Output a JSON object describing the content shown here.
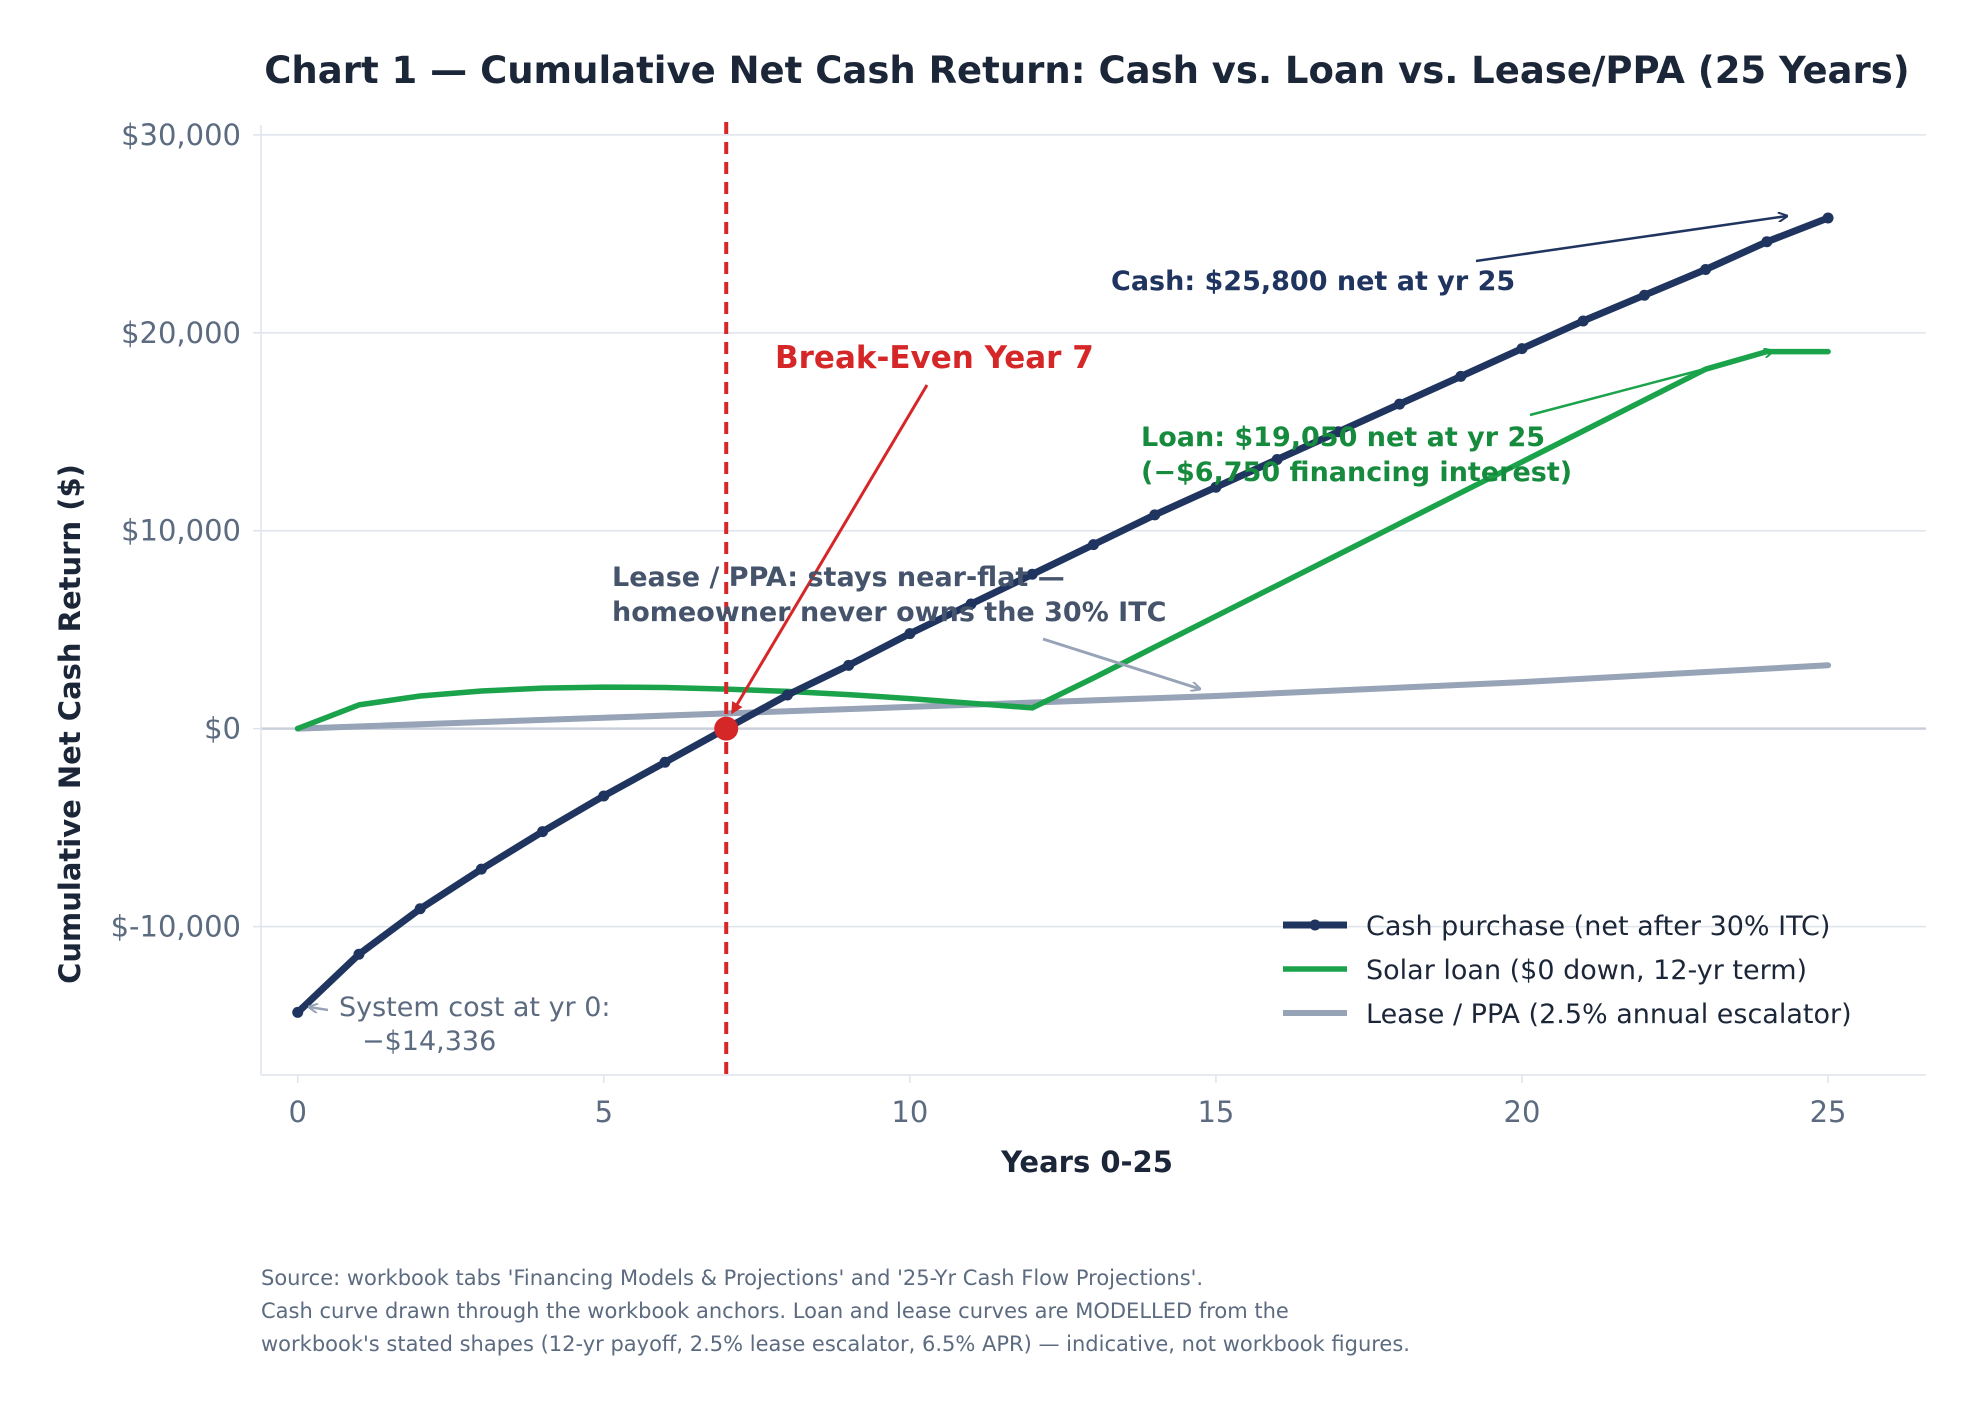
{
  "chart_data": {
    "type": "line",
    "title": "Chart 1 — Cumulative Net Cash Return: Cash vs. Loan vs. Lease/PPA (25 Years)",
    "xlabel": "Years 0-25",
    "ylabel": "Cumulative Net Cash Return ($)",
    "xlim": [
      -0.6,
      26.6
    ],
    "ylim": [
      -17500,
      30500
    ],
    "x_ticks": [
      0,
      5,
      10,
      15,
      20,
      25
    ],
    "y_ticks": [
      -10000,
      0,
      10000,
      20000,
      30000
    ],
    "x_tick_labels": [
      "0",
      "5",
      "10",
      "15",
      "20",
      "25"
    ],
    "y_tick_labels": [
      "$-10,000",
      "$0",
      "$10,000",
      "$20,000",
      "$30,000"
    ],
    "grid": "horizontal",
    "legend_position": "lower-right",
    "colors": {
      "cash": "#1f3560",
      "loan": "#1aa34a",
      "lease": "#97a3b6",
      "breakeven": "#d62728",
      "text": "#1c2639",
      "tick": "#5c6b80",
      "grid": "#dfe3ec"
    },
    "series": [
      {
        "key": "cash",
        "name": "Cash purchase (net after 30% ITC)",
        "markers": true,
        "x": [
          0,
          1,
          2,
          3,
          4,
          5,
          6,
          7,
          8,
          9,
          10,
          11,
          12,
          13,
          14,
          15,
          16,
          17,
          18,
          19,
          20,
          21,
          22,
          23,
          24,
          25
        ],
        "y": [
          -14336,
          -11400,
          -9100,
          -7100,
          -5200,
          -3400,
          -1700,
          0,
          1700,
          3200,
          4800,
          6300,
          7800,
          9300,
          10800,
          12200,
          13600,
          15000,
          16400,
          17800,
          19200,
          20600,
          21900,
          23200,
          24600,
          25800
        ]
      },
      {
        "key": "loan",
        "name": "Solar loan ($0 down, 12-yr term)",
        "markers": false,
        "x": [
          0,
          1,
          2,
          3,
          4,
          5,
          6,
          7,
          8,
          9,
          10,
          11,
          12,
          13,
          14,
          15,
          16,
          17,
          18,
          19,
          20,
          21,
          22,
          23,
          24,
          25
        ],
        "y": [
          0,
          1200,
          1650,
          1900,
          2050,
          2100,
          2080,
          2000,
          1880,
          1720,
          1520,
          1280,
          1050,
          2560,
          4120,
          5680,
          7240,
          8800,
          10360,
          11920,
          13480,
          15040,
          16600,
          18160,
          19050,
          19050
        ]
      },
      {
        "key": "lease",
        "name": "Lease / PPA (2.5% annual escalator)",
        "markers": false,
        "x": [
          0,
          5,
          10,
          15,
          20,
          25
        ],
        "y": [
          0,
          550,
          1100,
          1650,
          2350,
          3200
        ]
      }
    ],
    "breakeven": {
      "x": 7,
      "y": 0,
      "label": "Break-Even Year 7"
    },
    "annotations": {
      "cash": "Cash: $25,800 net at yr 25",
      "loan_line1": "Loan: $19,050 net at yr 25",
      "loan_line2": "(−$6,750 financing interest)",
      "lease_line1": "Lease / PPA: stays near-flat —",
      "lease_line2": "homeowner never owns the 30% ITC",
      "system_cost_line1": "System cost at yr 0:",
      "system_cost_line2": "−$14,336"
    }
  },
  "footer": {
    "line1": "Source: workbook tabs 'Financing Models & Projections' and '25-Yr Cash Flow Projections'.",
    "line2": "Cash curve drawn through the workbook anchors. Loan and lease curves are MODELLED from the",
    "line3": "workbook's stated shapes (12-yr payoff, 2.5% lease escalator, 6.5% APR) — indicative, not workbook figures."
  }
}
